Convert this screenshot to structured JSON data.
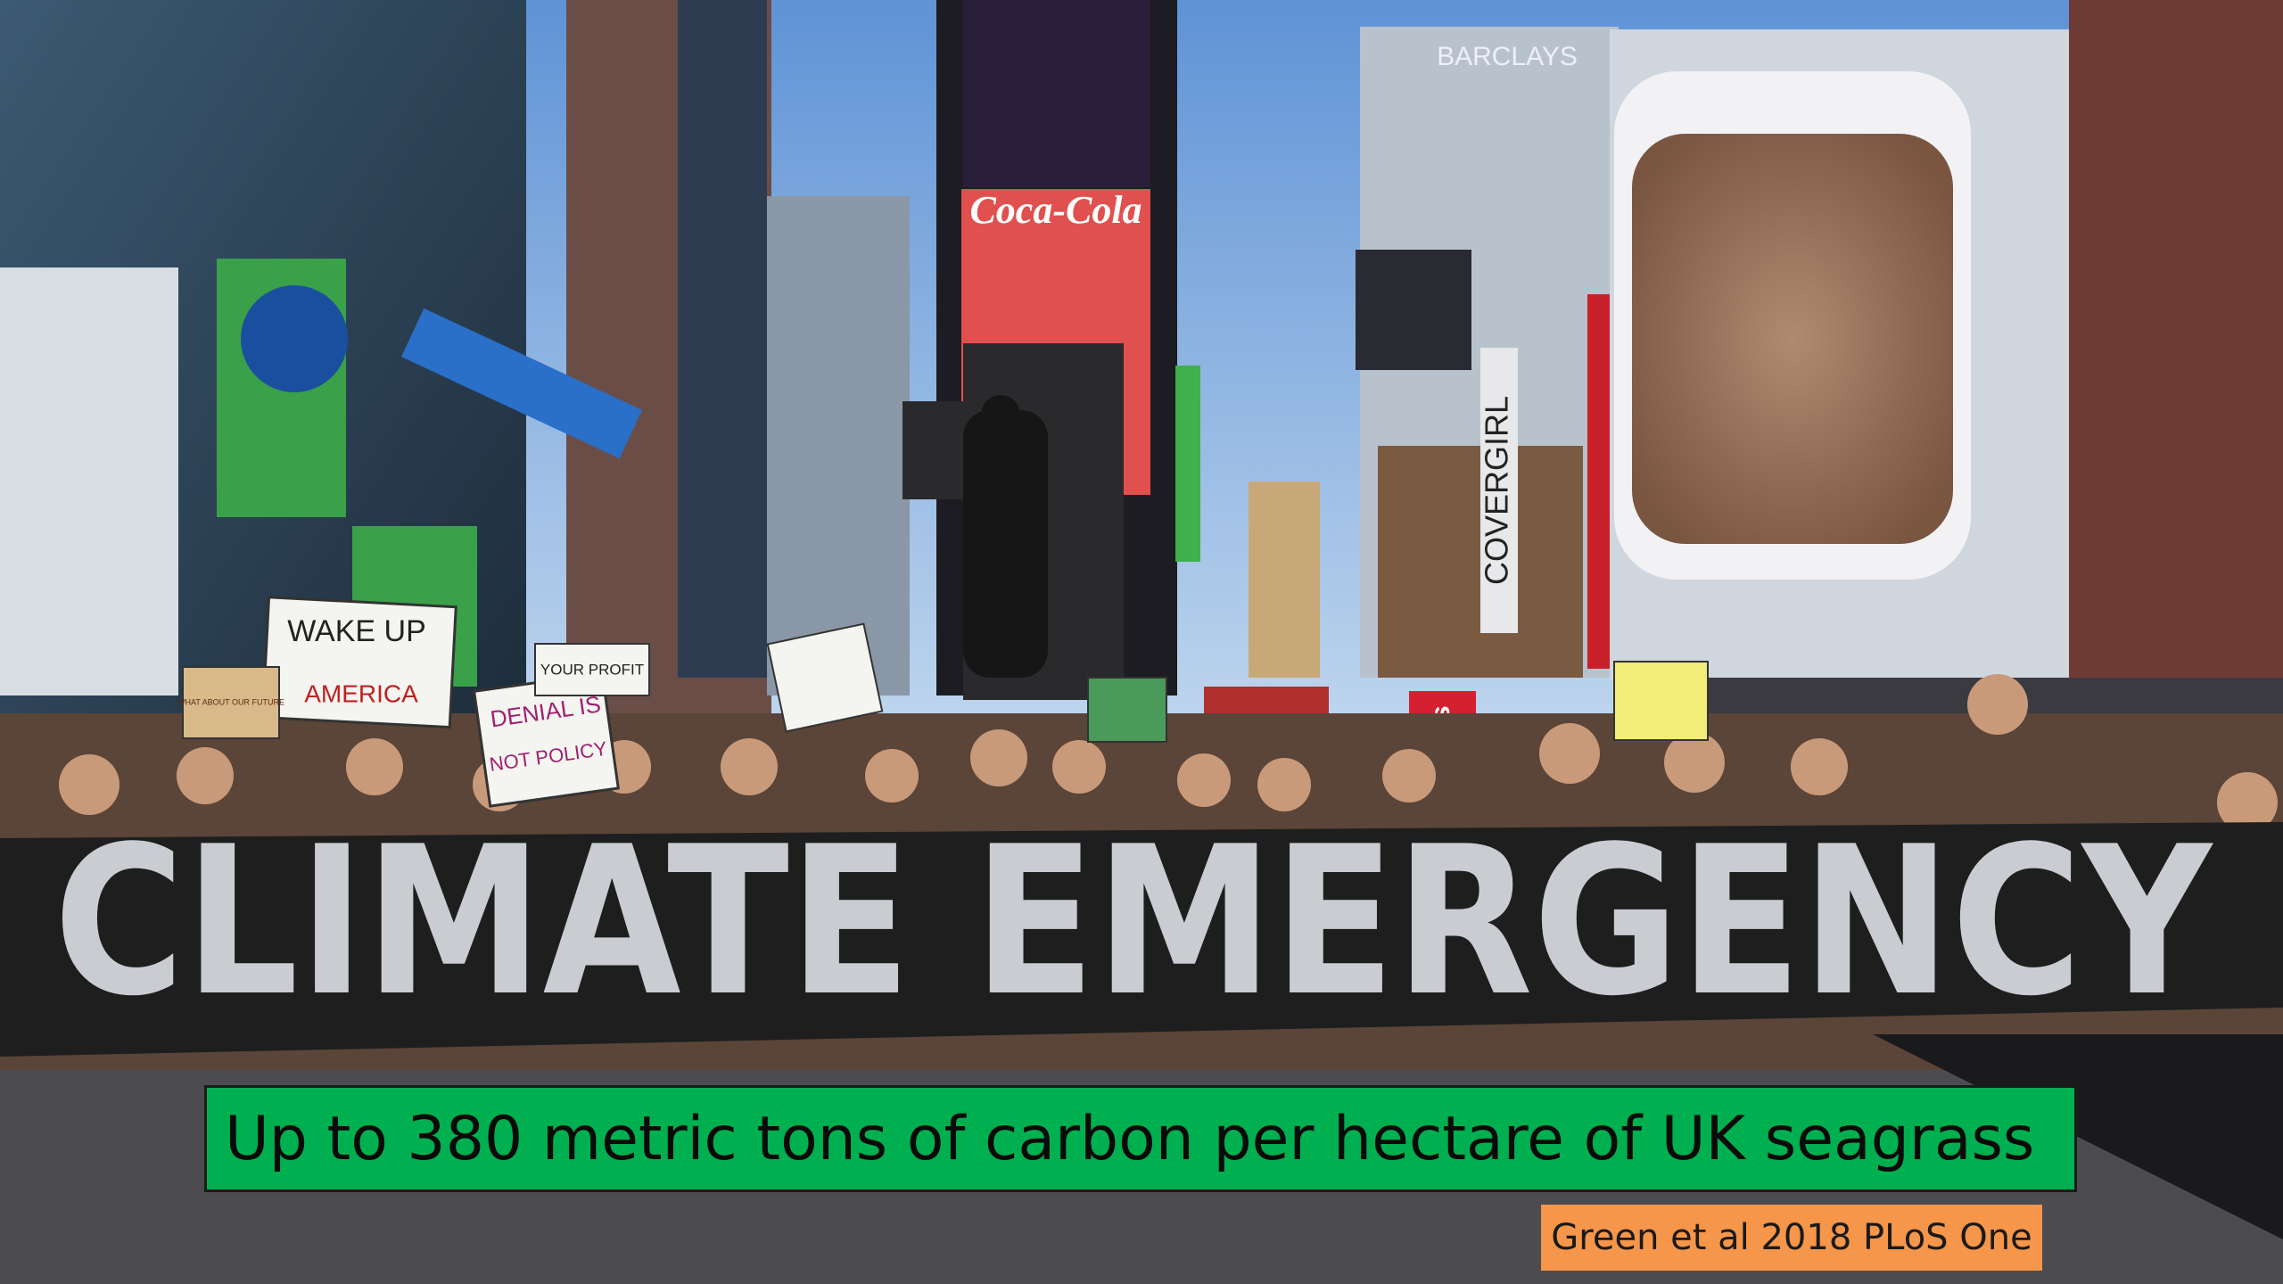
{
  "photo": {
    "banner": "CLIMATE EMERGENCY",
    "signs": [
      "WAKE UP",
      "AMERICA",
      "DENIAL IS",
      "NOT POLICY",
      "YOUR PROFIT",
      "WHAT ABOUT OUR FUTURE"
    ],
    "billboards": [
      "Coca-Cola",
      "BARCLAYS",
      "COVERGIRL",
      "tkts"
    ]
  },
  "caption": "Up to 380 metric tons of carbon per hectare of UK seagrass",
  "source": "Green et al 2018 PLoS One"
}
